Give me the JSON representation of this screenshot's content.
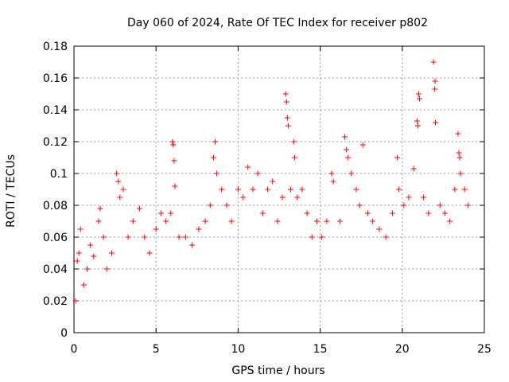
{
  "chart_data": {
    "type": "scatter",
    "title": "Day 060 of 2024, Rate Of TEC Index for receiver p802",
    "xlabel": "GPS time / hours",
    "ylabel": "ROTI / TECUs",
    "xlim": [
      0,
      25
    ],
    "ylim": [
      0,
      0.18
    ],
    "xticks": [
      0,
      5,
      10,
      15,
      20,
      25
    ],
    "xtick_labels": [
      "0",
      "5",
      "10",
      "15",
      "20",
      "25"
    ],
    "yticks": [
      0,
      0.02,
      0.04,
      0.06,
      0.08,
      0.1,
      0.12,
      0.14,
      0.16,
      0.18
    ],
    "ytick_labels": [
      "0",
      "0.02",
      "0.04",
      "0.06",
      "0.08",
      "0.1",
      "0.12",
      "0.14",
      "0.16",
      "0.18"
    ],
    "grid": true,
    "marker": "+",
    "color": "#ff0000",
    "series": [
      {
        "points": [
          [
            0.1,
            0.02
          ],
          [
            0.2,
            0.045
          ],
          [
            0.3,
            0.05
          ],
          [
            0.4,
            0.065
          ],
          [
            0.6,
            0.03
          ],
          [
            0.8,
            0.04
          ],
          [
            1.0,
            0.055
          ],
          [
            1.2,
            0.048
          ],
          [
            1.5,
            0.07
          ],
          [
            1.6,
            0.078
          ],
          [
            1.8,
            0.06
          ],
          [
            2.0,
            0.04
          ],
          [
            2.3,
            0.05
          ],
          [
            2.6,
            0.1
          ],
          [
            2.7,
            0.095
          ],
          [
            2.8,
            0.085
          ],
          [
            3.0,
            0.09
          ],
          [
            3.3,
            0.06
          ],
          [
            3.6,
            0.07
          ],
          [
            4.0,
            0.078
          ],
          [
            4.3,
            0.06
          ],
          [
            4.6,
            0.05
          ],
          [
            5.0,
            0.065
          ],
          [
            5.3,
            0.075
          ],
          [
            5.6,
            0.07
          ],
          [
            5.9,
            0.075
          ],
          [
            6.0,
            0.12
          ],
          [
            6.05,
            0.118
          ],
          [
            6.1,
            0.108
          ],
          [
            6.15,
            0.092
          ],
          [
            6.4,
            0.06
          ],
          [
            6.8,
            0.06
          ],
          [
            7.2,
            0.055
          ],
          [
            7.6,
            0.065
          ],
          [
            8.0,
            0.07
          ],
          [
            8.3,
            0.08
          ],
          [
            8.5,
            0.11
          ],
          [
            8.6,
            0.12
          ],
          [
            8.7,
            0.1
          ],
          [
            9.0,
            0.09
          ],
          [
            9.3,
            0.08
          ],
          [
            9.6,
            0.07
          ],
          [
            10.0,
            0.09
          ],
          [
            10.3,
            0.085
          ],
          [
            10.6,
            0.104
          ],
          [
            10.9,
            0.09
          ],
          [
            11.2,
            0.1
          ],
          [
            11.5,
            0.075
          ],
          [
            11.8,
            0.09
          ],
          [
            12.1,
            0.095
          ],
          [
            12.4,
            0.07
          ],
          [
            12.7,
            0.085
          ],
          [
            12.9,
            0.15
          ],
          [
            12.95,
            0.145
          ],
          [
            13.0,
            0.135
          ],
          [
            13.05,
            0.13
          ],
          [
            13.2,
            0.09
          ],
          [
            13.4,
            0.12
          ],
          [
            13.45,
            0.11
          ],
          [
            13.6,
            0.085
          ],
          [
            13.9,
            0.09
          ],
          [
            14.2,
            0.075
          ],
          [
            14.5,
            0.06
          ],
          [
            14.8,
            0.07
          ],
          [
            15.1,
            0.06
          ],
          [
            15.4,
            0.07
          ],
          [
            15.7,
            0.1
          ],
          [
            15.8,
            0.095
          ],
          [
            16.2,
            0.07
          ],
          [
            16.5,
            0.123
          ],
          [
            16.6,
            0.115
          ],
          [
            16.7,
            0.11
          ],
          [
            16.9,
            0.1
          ],
          [
            17.2,
            0.09
          ],
          [
            17.4,
            0.08
          ],
          [
            17.6,
            0.118
          ],
          [
            17.9,
            0.075
          ],
          [
            18.2,
            0.07
          ],
          [
            18.6,
            0.065
          ],
          [
            19.0,
            0.06
          ],
          [
            19.4,
            0.075
          ],
          [
            19.7,
            0.11
          ],
          [
            19.8,
            0.09
          ],
          [
            20.1,
            0.08
          ],
          [
            20.4,
            0.085
          ],
          [
            20.7,
            0.103
          ],
          [
            20.9,
            0.133
          ],
          [
            20.95,
            0.13
          ],
          [
            21.0,
            0.15
          ],
          [
            21.05,
            0.147
          ],
          [
            21.3,
            0.085
          ],
          [
            21.6,
            0.075
          ],
          [
            21.9,
            0.17
          ],
          [
            22.0,
            0.158
          ],
          [
            21.98,
            0.153
          ],
          [
            22.02,
            0.132
          ],
          [
            22.3,
            0.08
          ],
          [
            22.6,
            0.075
          ],
          [
            22.9,
            0.07
          ],
          [
            23.2,
            0.09
          ],
          [
            23.4,
            0.125
          ],
          [
            23.45,
            0.113
          ],
          [
            23.5,
            0.11
          ],
          [
            23.55,
            0.1
          ],
          [
            23.8,
            0.09
          ],
          [
            24.0,
            0.08
          ]
        ]
      }
    ]
  }
}
